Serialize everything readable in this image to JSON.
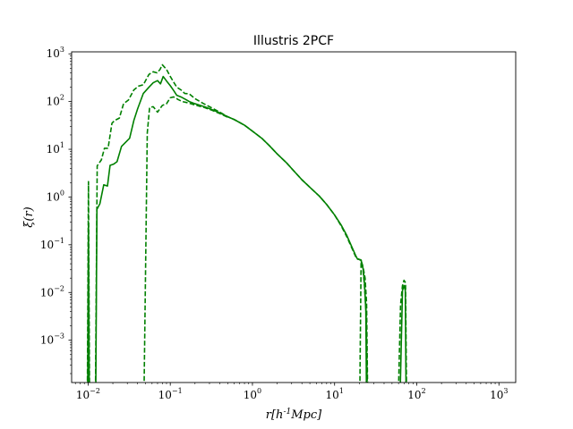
{
  "chart_data": {
    "type": "line",
    "title": "Illustris 2PCF",
    "xlabel": "r[h^{-1}Mpc]",
    "ylabel": "ξ(r)",
    "xscale": "log",
    "yscale": "log",
    "xlim": [
      0.0063,
      1600
    ],
    "ylim": [
      0.00013,
      1100
    ],
    "xticks": [
      {
        "value": 0.01,
        "label": "10",
        "exp": "−2"
      },
      {
        "value": 0.1,
        "label": "10",
        "exp": "−1"
      },
      {
        "value": 1,
        "label": "10",
        "exp": "0"
      },
      {
        "value": 10,
        "label": "10",
        "exp": "1"
      },
      {
        "value": 100,
        "label": "10",
        "exp": "2"
      },
      {
        "value": 1000,
        "label": "10",
        "exp": "3"
      }
    ],
    "yticks": [
      {
        "value": 0.001,
        "label": "10",
        "exp": "−3"
      },
      {
        "value": 0.01,
        "label": "10",
        "exp": "−2"
      },
      {
        "value": 0.1,
        "label": "10",
        "exp": "−1"
      },
      {
        "value": 1,
        "label": "10",
        "exp": "0"
      },
      {
        "value": 10,
        "label": "10",
        "exp": "1"
      },
      {
        "value": 100,
        "label": "10",
        "exp": "2"
      },
      {
        "value": 1000,
        "label": "10",
        "exp": "3"
      }
    ],
    "color": "#008000",
    "grid": false,
    "legend": "none",
    "series": [
      {
        "style": "solid",
        "segments": [
          [
            [
              0.0099,
              0.0001
            ],
            [
              0.0101,
              0.28
            ],
            [
              0.0103,
              0.0001
            ]
          ],
          [
            [
              0.0124,
              0.0001
            ],
            [
              0.0128,
              0.55
            ],
            [
              0.0139,
              0.72
            ],
            [
              0.0155,
              1.8
            ],
            [
              0.0172,
              1.7
            ],
            [
              0.0185,
              4.6
            ],
            [
              0.0205,
              4.9
            ],
            [
              0.0225,
              5.5
            ],
            [
              0.0255,
              11.5
            ],
            [
              0.028,
              13.5
            ],
            [
              0.032,
              17
            ],
            [
              0.036,
              40
            ],
            [
              0.04,
              70
            ],
            [
              0.047,
              148
            ],
            [
              0.055,
              200
            ],
            [
              0.062,
              248
            ],
            [
              0.07,
              275
            ],
            [
              0.076,
              235
            ],
            [
              0.082,
              335
            ],
            [
              0.09,
              270
            ],
            [
              0.1,
              215
            ],
            [
              0.11,
              170
            ],
            [
              0.12,
              135
            ],
            [
              0.135,
              125
            ],
            [
              0.155,
              110
            ],
            [
              0.17,
              100
            ],
            [
              0.2,
              90
            ],
            [
              0.26,
              78
            ],
            [
              0.32,
              68
            ],
            [
              0.4,
              58
            ],
            [
              0.5,
              48
            ],
            [
              0.6,
              42
            ],
            [
              0.8,
              32
            ],
            [
              1.0,
              24
            ],
            [
              1.3,
              17
            ],
            [
              1.6,
              12
            ],
            [
              2.0,
              8
            ],
            [
              2.6,
              5.2
            ],
            [
              3.2,
              3.5
            ],
            [
              4.0,
              2.3
            ],
            [
              5.0,
              1.6
            ],
            [
              6.5,
              1.05
            ],
            [
              8.0,
              0.7
            ],
            [
              10.0,
              0.42
            ],
            [
              12.0,
              0.26
            ],
            [
              14.0,
              0.16
            ],
            [
              16.0,
              0.095
            ],
            [
              18.0,
              0.06
            ],
            [
              19.0,
              0.05
            ],
            [
              20.0,
              0.049
            ],
            [
              21.0,
              0.047
            ],
            [
              21.8,
              0.038
            ],
            [
              22.5,
              0.027
            ],
            [
              23.2,
              0.014
            ],
            [
              24.0,
              0.004
            ],
            [
              24.4,
              0.0001
            ]
          ],
          [
            [
              63.0,
              0.0001
            ],
            [
              67.0,
              0.011
            ],
            [
              70.0,
              0.014
            ],
            [
              72.5,
              0.011
            ],
            [
              74.0,
              0.0001
            ]
          ]
        ]
      },
      {
        "style": "dashed",
        "segments": [
          [
            [
              0.0098,
              0.0001
            ],
            [
              0.0101,
              2.1
            ],
            [
              0.0104,
              0.0001
            ]
          ],
          [
            [
              0.0123,
              0.0001
            ],
            [
              0.0129,
              4.5
            ],
            [
              0.0145,
              6.0
            ],
            [
              0.0158,
              10.5
            ],
            [
              0.0175,
              10.5
            ],
            [
              0.0195,
              35
            ],
            [
              0.021,
              40
            ],
            [
              0.024,
              45
            ],
            [
              0.027,
              90
            ],
            [
              0.031,
              108
            ],
            [
              0.036,
              175
            ],
            [
              0.041,
              210
            ],
            [
              0.047,
              225
            ],
            [
              0.055,
              370
            ],
            [
              0.062,
              420
            ],
            [
              0.069,
              400
            ],
            [
              0.075,
              470
            ],
            [
              0.08,
              590
            ],
            [
              0.09,
              470
            ],
            [
              0.1,
              335
            ],
            [
              0.11,
              255
            ],
            [
              0.12,
              200
            ],
            [
              0.135,
              175
            ],
            [
              0.15,
              148
            ],
            [
              0.17,
              145
            ],
            [
              0.2,
              115
            ],
            [
              0.25,
              92
            ],
            [
              0.3,
              78
            ],
            [
              0.4,
              60
            ],
            [
              0.5,
              48
            ],
            [
              0.6,
              42
            ],
            [
              0.8,
              32
            ],
            [
              1.0,
              24
            ],
            [
              1.3,
              17
            ],
            [
              1.6,
              12
            ],
            [
              2.0,
              8
            ],
            [
              2.6,
              5.2
            ],
            [
              3.2,
              3.5
            ],
            [
              4.0,
              2.3
            ],
            [
              5.0,
              1.6
            ],
            [
              6.5,
              1.05
            ],
            [
              8.0,
              0.7
            ],
            [
              10.0,
              0.42
            ],
            [
              12.0,
              0.25
            ],
            [
              14.0,
              0.15
            ],
            [
              16.0,
              0.09
            ],
            [
              18.0,
              0.057
            ],
            [
              19.5,
              0.05
            ],
            [
              21.0,
              0.048
            ],
            [
              22.0,
              0.033
            ],
            [
              23.0,
              0.015
            ],
            [
              24.2,
              0.004
            ],
            [
              25.0,
              0.0001
            ]
          ],
          [
            [
              0.048,
              0.0001
            ],
            [
              0.0525,
              22
            ],
            [
              0.056,
              75
            ],
            [
              0.062,
              78
            ],
            [
              0.07,
              60
            ],
            [
              0.08,
              83
            ],
            [
              0.09,
              90
            ],
            [
              0.1,
              120
            ],
            [
              0.11,
              125
            ],
            [
              0.125,
              110
            ],
            [
              0.14,
              100
            ],
            [
              0.16,
              95
            ],
            [
              0.2,
              85
            ],
            [
              0.26,
              75
            ],
            [
              0.32,
              66
            ],
            [
              0.4,
              56
            ],
            [
              0.5,
              47
            ]
          ],
          [
            [
              20.3,
              0.0001
            ],
            [
              21.0,
              0.045
            ],
            [
              21.8,
              0.038
            ],
            [
              22.5,
              0.03
            ],
            [
              23.5,
              0.02
            ],
            [
              24.5,
              0.006
            ],
            [
              25.2,
              0.0001
            ]
          ],
          [
            [
              60.0,
              0.0001
            ],
            [
              63.5,
              0.0055
            ],
            [
              67.0,
              0.014
            ],
            [
              70.0,
              0.018
            ],
            [
              73.0,
              0.016
            ],
            [
              75.0,
              0.0001
            ]
          ]
        ]
      }
    ]
  }
}
